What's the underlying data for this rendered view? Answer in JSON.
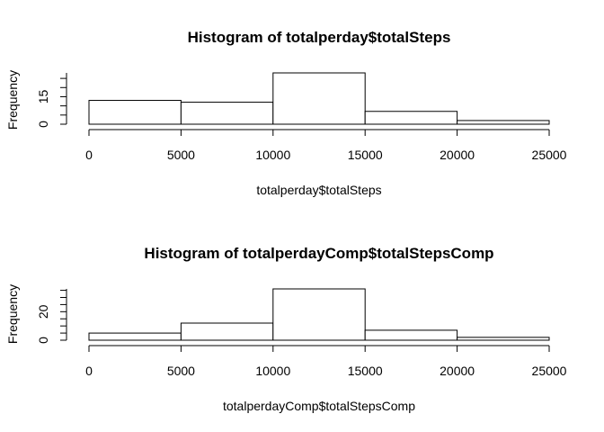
{
  "chart_data": [
    {
      "type": "bar",
      "title": "Histogram of totalperday$totalSteps",
      "xlabel": "totalperday$totalSteps",
      "ylabel": "Frequency",
      "bins": [
        [
          0,
          5000
        ],
        [
          5000,
          10000
        ],
        [
          10000,
          15000
        ],
        [
          15000,
          20000
        ],
        [
          20000,
          25000
        ]
      ],
      "values": [
        13,
        12,
        28,
        7,
        2
      ],
      "xlim": [
        0,
        25000
      ],
      "ylim": [
        0,
        28
      ],
      "xticks": [
        "0",
        "5000",
        "10000",
        "15000",
        "20000",
        "25000"
      ],
      "yticks": [
        "0",
        "15"
      ],
      "grid": false
    },
    {
      "type": "bar",
      "title": "Histogram of totalperdayComp$totalStepsComp",
      "xlabel": "totalperdayComp$totalStepsComp",
      "ylabel": "Frequency",
      "bins": [
        [
          0,
          5000
        ],
        [
          5000,
          10000
        ],
        [
          10000,
          15000
        ],
        [
          15000,
          20000
        ],
        [
          20000,
          25000
        ]
      ],
      "values": [
        5,
        12,
        36,
        7,
        2
      ],
      "xlim": [
        0,
        25000
      ],
      "ylim": [
        0,
        36
      ],
      "xticks": [
        "0",
        "5000",
        "10000",
        "15000",
        "20000",
        "25000"
      ],
      "yticks": [
        "0",
        "20"
      ],
      "grid": false
    }
  ]
}
